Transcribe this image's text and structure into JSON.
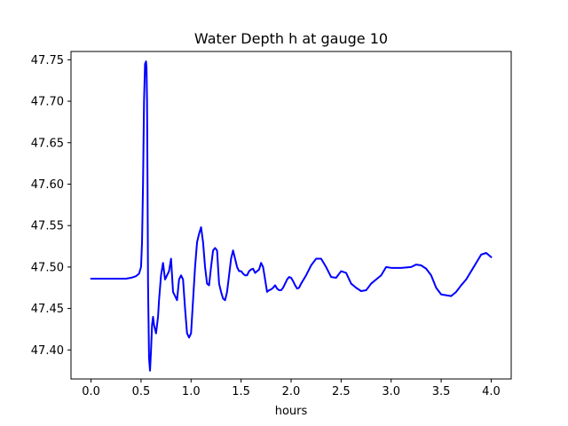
{
  "chart_data": {
    "type": "line",
    "title": "Water Depth h at gauge 10",
    "xlabel": "hours",
    "ylabel": "",
    "xlim": [
      -0.2,
      4.2
    ],
    "ylim": [
      47.365,
      47.76
    ],
    "xticks": [
      0.0,
      0.5,
      1.0,
      1.5,
      2.0,
      2.5,
      3.0,
      3.5,
      4.0
    ],
    "xtick_labels": [
      "0.0",
      "0.5",
      "1.0",
      "1.5",
      "2.0",
      "2.5",
      "3.0",
      "3.5",
      "4.0"
    ],
    "yticks": [
      47.4,
      47.45,
      47.5,
      47.55,
      47.6,
      47.65,
      47.7,
      47.75
    ],
    "ytick_labels": [
      "47.40",
      "47.45",
      "47.50",
      "47.55",
      "47.60",
      "47.65",
      "47.70",
      "47.75"
    ],
    "grid": false,
    "series": [
      {
        "color": "#0000ff",
        "x": [
          0.0,
          0.1,
          0.2,
          0.3,
          0.35,
          0.4,
          0.45,
          0.48,
          0.5,
          0.51,
          0.52,
          0.53,
          0.54,
          0.55,
          0.555,
          0.56,
          0.565,
          0.57,
          0.58,
          0.59,
          0.6,
          0.61,
          0.62,
          0.63,
          0.64,
          0.65,
          0.66,
          0.67,
          0.68,
          0.7,
          0.72,
          0.74,
          0.76,
          0.78,
          0.8,
          0.82,
          0.84,
          0.86,
          0.88,
          0.9,
          0.92,
          0.94,
          0.96,
          0.98,
          1.0,
          1.02,
          1.04,
          1.06,
          1.08,
          1.1,
          1.12,
          1.14,
          1.16,
          1.18,
          1.2,
          1.22,
          1.24,
          1.26,
          1.28,
          1.3,
          1.32,
          1.34,
          1.36,
          1.38,
          1.4,
          1.42,
          1.44,
          1.46,
          1.48,
          1.5,
          1.52,
          1.54,
          1.56,
          1.58,
          1.6,
          1.62,
          1.64,
          1.66,
          1.68,
          1.7,
          1.72,
          1.74,
          1.76,
          1.78,
          1.8,
          1.82,
          1.84,
          1.86,
          1.88,
          1.9,
          1.92,
          1.94,
          1.96,
          1.98,
          2.0,
          2.02,
          2.04,
          2.06,
          2.08,
          2.1,
          2.15,
          2.2,
          2.25,
          2.3,
          2.35,
          2.4,
          2.45,
          2.5,
          2.55,
          2.6,
          2.65,
          2.7,
          2.75,
          2.8,
          2.85,
          2.9,
          2.95,
          3.0,
          3.1,
          3.2,
          3.25,
          3.3,
          3.35,
          3.4,
          3.45,
          3.5,
          3.6,
          3.65,
          3.7,
          3.75,
          3.8,
          3.85,
          3.9,
          3.95,
          4.0
        ],
        "y": [
          47.486,
          47.486,
          47.486,
          47.486,
          47.486,
          47.487,
          47.489,
          47.492,
          47.5,
          47.53,
          47.6,
          47.7,
          47.745,
          47.748,
          47.74,
          47.7,
          47.6,
          47.48,
          47.39,
          47.375,
          47.4,
          47.43,
          47.44,
          47.43,
          47.425,
          47.42,
          47.43,
          47.44,
          47.46,
          47.49,
          47.505,
          47.485,
          47.49,
          47.495,
          47.51,
          47.47,
          47.465,
          47.46,
          47.485,
          47.49,
          47.485,
          47.45,
          47.42,
          47.415,
          47.42,
          47.46,
          47.5,
          47.53,
          47.54,
          47.548,
          47.53,
          47.5,
          47.48,
          47.478,
          47.5,
          47.52,
          47.523,
          47.52,
          47.48,
          47.47,
          47.462,
          47.46,
          47.47,
          47.49,
          47.51,
          47.52,
          47.51,
          47.5,
          47.495,
          47.495,
          47.492,
          47.49,
          47.49,
          47.495,
          47.497,
          47.498,
          47.493,
          47.495,
          47.497,
          47.505,
          47.5,
          47.485,
          47.47,
          47.472,
          47.473,
          47.475,
          47.478,
          47.474,
          47.472,
          47.472,
          47.475,
          47.48,
          47.485,
          47.488,
          47.487,
          47.483,
          47.478,
          47.474,
          47.475,
          47.48,
          47.49,
          47.502,
          47.51,
          47.51,
          47.5,
          47.488,
          47.487,
          47.495,
          47.493,
          47.48,
          47.475,
          47.471,
          47.472,
          47.48,
          47.485,
          47.49,
          47.5,
          47.499,
          47.499,
          47.5,
          47.503,
          47.502,
          47.498,
          47.49,
          47.475,
          47.467,
          47.465,
          47.47,
          47.478,
          47.485,
          47.495,
          47.505,
          47.515,
          47.517,
          47.512
        ]
      }
    ]
  }
}
